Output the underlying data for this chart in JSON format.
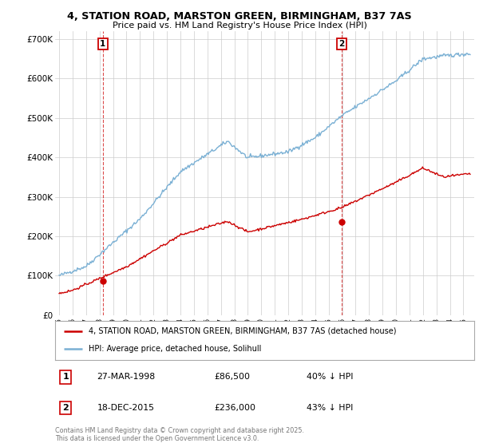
{
  "title1": "4, STATION ROAD, MARSTON GREEN, BIRMINGHAM, B37 7AS",
  "title2": "Price paid vs. HM Land Registry's House Price Index (HPI)",
  "legend_label_red": "4, STATION ROAD, MARSTON GREEN, BIRMINGHAM, B37 7AS (detached house)",
  "legend_label_blue": "HPI: Average price, detached house, Solihull",
  "annotation1_label": "1",
  "annotation1_date": "27-MAR-1998",
  "annotation1_price": "£86,500",
  "annotation1_hpi": "40% ↓ HPI",
  "annotation2_label": "2",
  "annotation2_date": "18-DEC-2015",
  "annotation2_price": "£236,000",
  "annotation2_hpi": "43% ↓ HPI",
  "footnote": "Contains HM Land Registry data © Crown copyright and database right 2025.\nThis data is licensed under the Open Government Licence v3.0.",
  "ylim": [
    0,
    720000
  ],
  "yticks": [
    0,
    100000,
    200000,
    300000,
    400000,
    500000,
    600000,
    700000
  ],
  "ytick_labels": [
    "£0",
    "£100K",
    "£200K",
    "£300K",
    "£400K",
    "£500K",
    "£600K",
    "£700K"
  ],
  "color_red": "#cc0000",
  "color_blue": "#7ab0d4",
  "color_grid": "#cccccc",
  "bg_color": "#ffffff",
  "marker1_x": 1998.23,
  "marker1_y": 86500,
  "marker2_x": 2015.96,
  "marker2_y": 236000,
  "vline1_x": 1998.23,
  "vline2_x": 2015.96,
  "xlim_left": 1994.7,
  "xlim_right": 2025.8
}
